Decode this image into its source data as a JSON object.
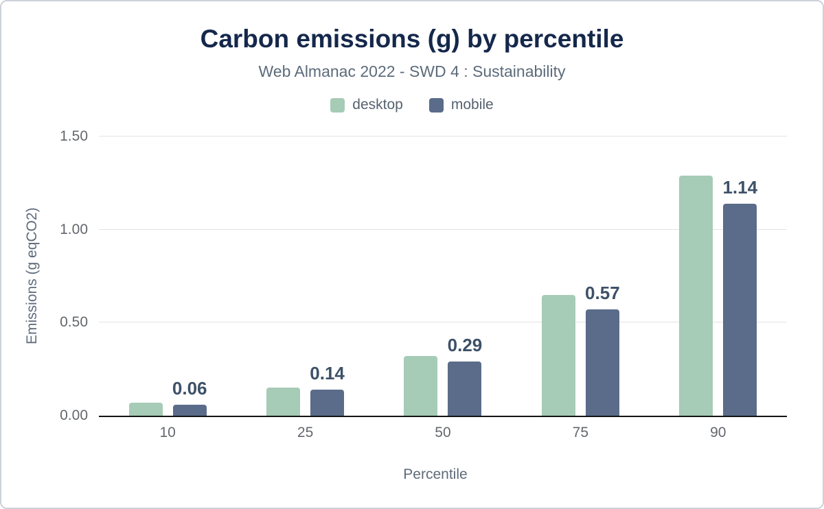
{
  "chart": {
    "title": "Carbon emissions (g) by percentile",
    "subtitle": "Web Almanac 2022 - SWD 4 : Sustainability",
    "ylabel": "Emissions (g eqCO2)",
    "xlabel": "Percentile",
    "yticks": [
      {
        "label": "0.00",
        "value": 0
      },
      {
        "label": "0.50",
        "value": 0.5
      },
      {
        "label": "1.00",
        "value": 1
      },
      {
        "label": "1.50",
        "value": 1.5
      }
    ],
    "colors": {
      "title": "#15284b",
      "subtitle": "#5c6b7a",
      "axis_text": "#63676c",
      "gridline": "#e3e3e3",
      "baseline": "#131313",
      "data_label": "#3d5167",
      "desktop": "#a6cbb6",
      "mobile": "#5a6c89"
    }
  },
  "chart_data": {
    "type": "bar",
    "title": "Carbon emissions (g) by percentile",
    "subtitle": "Web Almanac 2022 - SWD 4 : Sustainability",
    "xlabel": "Percentile",
    "ylabel": "Emissions (g eqCO2)",
    "categories": [
      "10",
      "25",
      "50",
      "75",
      "90"
    ],
    "series": [
      {
        "name": "desktop",
        "color": "#a6cbb6",
        "values": [
          0.07,
          0.15,
          0.32,
          0.65,
          1.29
        ]
      },
      {
        "name": "mobile",
        "color": "#5a6c89",
        "values": [
          0.06,
          0.14,
          0.29,
          0.57,
          1.14
        ]
      }
    ],
    "data_labels": [
      "0.06",
      "0.14",
      "0.29",
      "0.57",
      "1.14"
    ],
    "ylim": [
      0,
      1.5
    ],
    "grid": "horizontal",
    "legend_position": "top"
  }
}
